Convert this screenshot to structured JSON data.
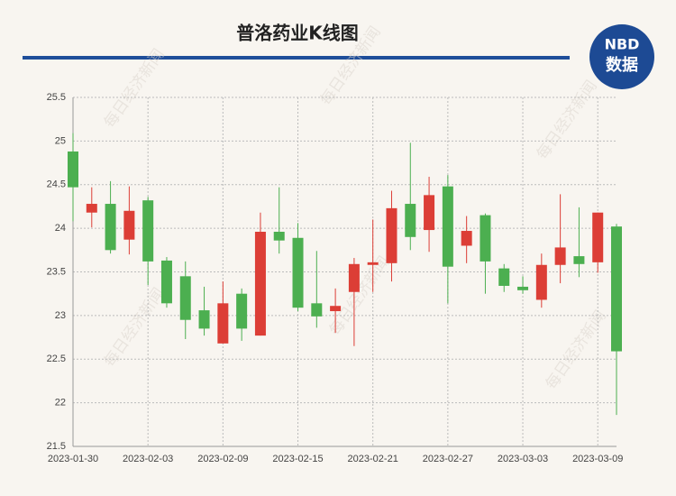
{
  "chart_data": {
    "type": "candlestick",
    "title": "普洛药业K线图",
    "logo": {
      "top": "NBD",
      "bottom": "数据"
    },
    "watermark": "每日经济新闻",
    "categories": [
      "2023-01-30",
      null,
      null,
      null,
      "2023-02-03",
      null,
      null,
      null,
      "2023-02-09",
      null,
      null,
      null,
      "2023-02-15",
      null,
      null,
      null,
      "2023-02-21",
      null,
      null,
      null,
      "2023-02-27",
      null,
      null,
      null,
      "2023-03-03",
      null,
      null,
      null,
      "2023-03-09",
      null
    ],
    "series": [
      {
        "up_color": "#dc3e36",
        "down_color": "#4caf50",
        "open": [
          24.88,
          24.18,
          24.28,
          23.87,
          24.32,
          23.63,
          23.45,
          23.06,
          22.68,
          23.25,
          22.77,
          23.96,
          23.89,
          23.14,
          23.05,
          23.27,
          23.58,
          23.6,
          24.28,
          23.98,
          24.48,
          23.8,
          24.15,
          23.54,
          23.33,
          23.18,
          23.58,
          23.68,
          23.61,
          24.02
        ],
        "high": [
          25.09,
          24.47,
          24.54,
          24.48,
          24.36,
          23.67,
          23.62,
          23.33,
          23.39,
          23.31,
          24.18,
          24.47,
          24.06,
          23.74,
          23.31,
          23.66,
          24.1,
          24.43,
          24.98,
          24.59,
          24.61,
          24.14,
          24.17,
          23.59,
          23.45,
          23.71,
          24.39,
          24.24,
          24.18,
          24.05
        ],
        "low": [
          24.08,
          24.01,
          23.71,
          23.7,
          23.35,
          23.09,
          22.73,
          22.77,
          22.68,
          22.71,
          22.77,
          23.71,
          23.05,
          22.86,
          22.8,
          22.65,
          23.27,
          23.39,
          23.75,
          23.73,
          23.14,
          23.6,
          23.25,
          23.27,
          23.25,
          23.09,
          23.37,
          23.44,
          23.49,
          21.86
        ],
        "close": [
          24.47,
          24.28,
          23.75,
          24.2,
          23.62,
          23.14,
          22.95,
          22.85,
          23.14,
          22.85,
          23.96,
          23.86,
          23.09,
          22.99,
          23.11,
          23.59,
          23.61,
          24.23,
          23.9,
          24.38,
          23.56,
          23.97,
          23.62,
          23.34,
          23.29,
          23.58,
          23.78,
          23.59,
          24.18,
          22.59
        ]
      }
    ],
    "ylim": [
      21.5,
      25.5
    ],
    "yticks": [
      21.5,
      22,
      22.5,
      23,
      23.5,
      24,
      24.5,
      25,
      25.5
    ],
    "grid": true
  }
}
